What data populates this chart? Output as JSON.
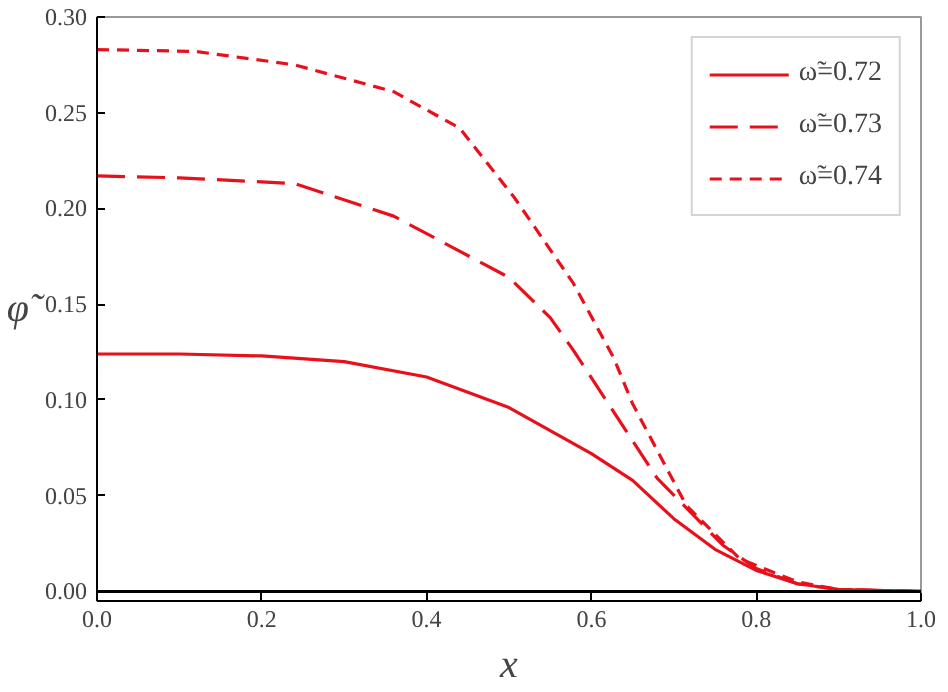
{
  "chart_data": {
    "type": "line",
    "xlabel": "x",
    "ylabel": "φ̃",
    "xlim": [
      0,
      1
    ],
    "ylim": [
      -0.005,
      0.3
    ],
    "xticks": [
      {
        "value": 0,
        "label": "0.0"
      },
      0.2,
      0.4,
      0.6,
      0.8,
      {
        "value": 1,
        "label": "1.0"
      }
    ],
    "yticks": [
      {
        "value": 0,
        "label": "0.00"
      },
      0.05,
      {
        "value": 0.1,
        "label": "0.10"
      },
      0.15,
      {
        "value": 0.2,
        "label": "0.20"
      },
      0.25,
      {
        "value": 0.3,
        "label": "0.30"
      }
    ],
    "grid": false,
    "legend": "top right",
    "marker": "none",
    "ref_lines": [
      {
        "axis": "y",
        "value": 0,
        "color": "#000000"
      }
    ],
    "series": [
      {
        "name": "ω̃=0.72",
        "color": "#e8111b",
        "line_style": "solid",
        "x": [
          0,
          0.1,
          0.2,
          0.3,
          0.4,
          0.5,
          0.6,
          0.65,
          0.7,
          0.75,
          0.8,
          0.85,
          0.9,
          1.0
        ],
        "values": [
          0.124,
          0.124,
          0.123,
          0.12,
          0.112,
          0.096,
          0.072,
          0.058,
          0.038,
          0.022,
          0.011,
          0.004,
          0.001,
          0
        ]
      },
      {
        "name": "ω̃=0.73",
        "color": "#e8111b",
        "line_style": "long_dash",
        "x": [
          0,
          0.1,
          0.24,
          0.36,
          0.5,
          0.55,
          0.578,
          0.68,
          0.76,
          0.8,
          0.85,
          0.9,
          1.0
        ],
        "values": [
          0.217,
          0.216,
          0.213,
          0.196,
          0.164,
          0.143,
          0.126,
          0.059,
          0.024,
          0.012,
          0.004,
          0.001,
          0
        ]
      },
      {
        "name": "ω̃=0.74",
        "color": "#e8111b",
        "line_style": "dashed",
        "x": [
          0,
          0.12,
          0.24,
          0.36,
          0.44,
          0.506,
          0.578,
          0.627,
          0.65,
          0.715,
          0.78,
          0.85,
          0.9,
          1.0
        ],
        "values": [
          0.283,
          0.282,
          0.275,
          0.261,
          0.242,
          0.206,
          0.161,
          0.122,
          0.098,
          0.045,
          0.017,
          0.005,
          0.001,
          0
        ]
      }
    ]
  }
}
